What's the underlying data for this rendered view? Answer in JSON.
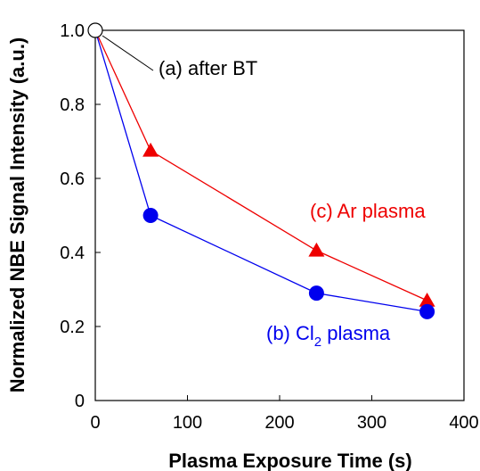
{
  "chart_data": {
    "type": "line",
    "title": "",
    "xlabel": "Plasma Exposure Time (s)",
    "ylabel": "Normalized NBE Signal Intensity (a.u.)",
    "xlim": [
      0,
      400
    ],
    "ylim": [
      0,
      1.0
    ],
    "x_ticks": [
      "0",
      "100",
      "200",
      "300",
      "400"
    ],
    "y_ticks": [
      "0",
      "0.2",
      "0.4",
      "0.6",
      "0.8",
      "1.0"
    ],
    "grid": false,
    "reference_point": {
      "x": 0,
      "y": 1.0,
      "label": "(a) after BT",
      "marker": "open-circle",
      "color": "#000000"
    },
    "series": [
      {
        "name": "(b) Cl2 plasma",
        "label_main": "(b) Cl",
        "label_sub": "2",
        "label_tail": " plasma",
        "color": "#0000ee",
        "marker": "circle",
        "x": [
          0,
          60,
          240,
          360
        ],
        "y": [
          1.0,
          0.5,
          0.29,
          0.24
        ]
      },
      {
        "name": "(c) Ar plasma",
        "label_main": "(c) Ar plasma",
        "color": "#ee0000",
        "marker": "triangle",
        "x": [
          0,
          60,
          240,
          360
        ],
        "y": [
          1.0,
          0.675,
          0.405,
          0.27
        ]
      }
    ]
  }
}
